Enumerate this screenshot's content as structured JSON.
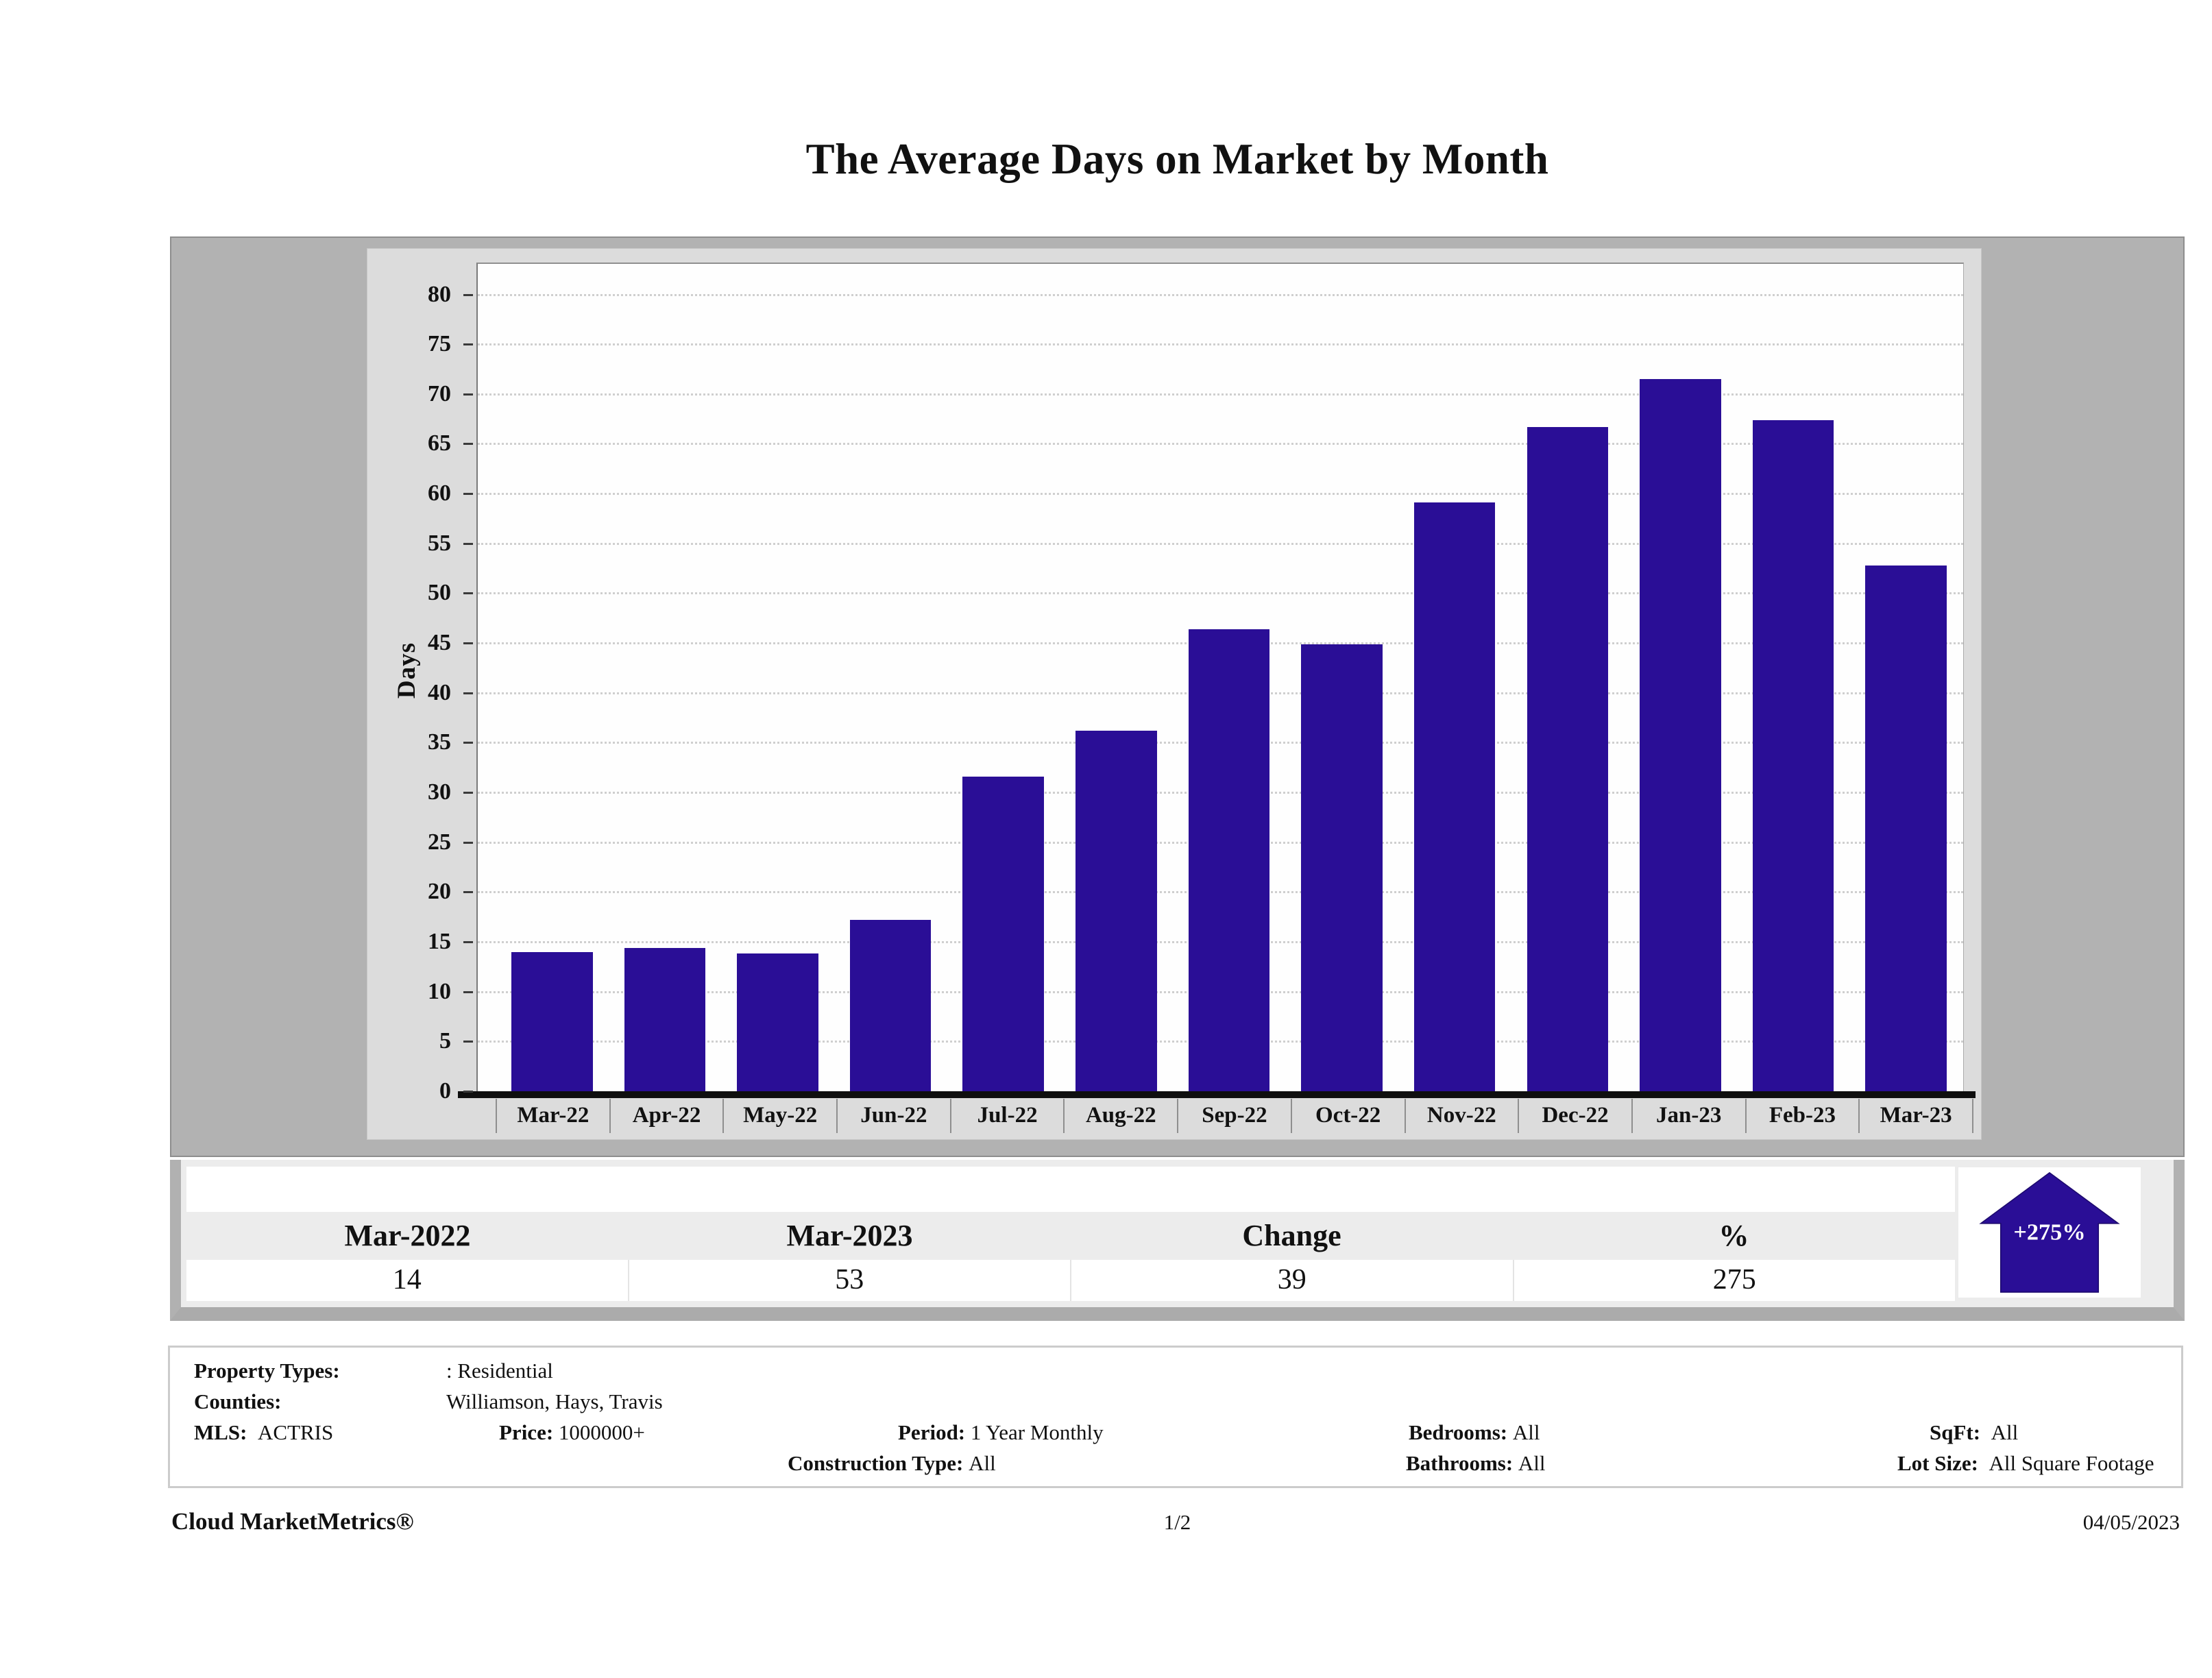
{
  "title": "The Average Days on Market by Month",
  "chart_data": {
    "type": "bar",
    "title": "The Average Days on Market by Month",
    "categories": [
      "Mar-22",
      "Apr-22",
      "May-22",
      "Jun-22",
      "Jul-22",
      "Aug-22",
      "Sep-22",
      "Oct-22",
      "Nov-22",
      "Dec-22",
      "Jan-23",
      "Feb-23",
      "Mar-23"
    ],
    "values": [
      14,
      14.4,
      13.8,
      17.2,
      31.6,
      36.2,
      46.4,
      44.9,
      59.1,
      66.7,
      71.5,
      67.4,
      52.8
    ],
    "xlabel": "",
    "ylabel": "Days",
    "ylim": [
      0,
      80
    ],
    "ytick_step": 5,
    "grid": "horizontal-dotted",
    "legend": "none",
    "bar_color": "#2a0e96"
  },
  "summary_table": {
    "headers": [
      "Mar-2022",
      "Mar-2023",
      "Change",
      "%"
    ],
    "values": [
      "14",
      "53",
      "39",
      "275"
    ],
    "badge_label": "+275%",
    "badge_direction": "up",
    "badge_color": "#2a0e96"
  },
  "details": {
    "items": [
      {
        "label": "Property Types:",
        "value": ": Residential"
      },
      {
        "label": "Counties:",
        "value": "Williamson, Hays, Travis"
      },
      {
        "label": "MLS:",
        "value": "ACTRIS"
      },
      {
        "label": "Price:",
        "value": "1000000+"
      },
      {
        "label": "Period:",
        "value": "1 Year Monthly"
      },
      {
        "label": "Bedrooms:",
        "value": "All"
      },
      {
        "label": "SqFt:",
        "value": "All"
      },
      {
        "label": "Construction Type:",
        "value": "All"
      },
      {
        "label": "Bathrooms:",
        "value": "All"
      },
      {
        "label": "Lot Size:",
        "value": "All Square Footage"
      }
    ]
  },
  "footer": {
    "brand": "Cloud MarketMetrics®",
    "page": "1/2",
    "date": "04/05/2023"
  }
}
